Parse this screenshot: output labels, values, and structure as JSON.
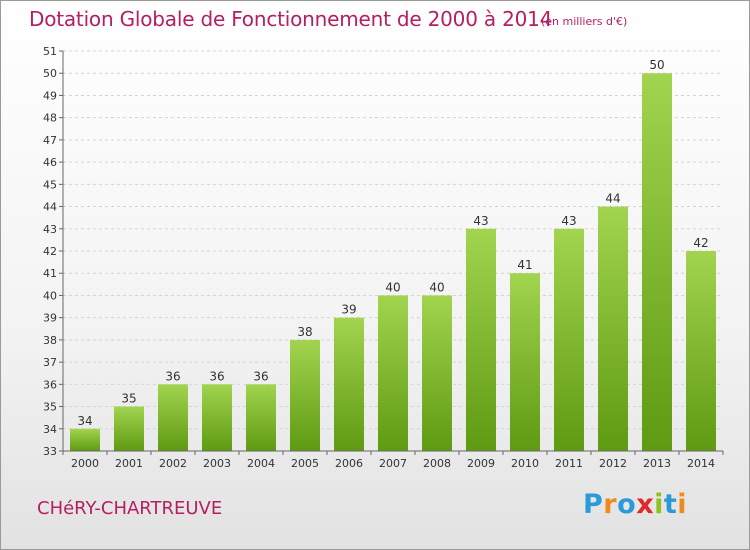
{
  "header": {
    "title": "Dotation Globale de Fonctionnement de 2000 à 2014",
    "unit": "(en milliers d'€)"
  },
  "footer": {
    "commune": "CHéRY-CHARTREUVE",
    "logo": [
      "P",
      "r",
      "o",
      "x",
      "i",
      "t",
      "i"
    ],
    "logo_colors": [
      "#2a9ad8",
      "#f08a1c",
      "#2a9ad8",
      "#e3262b",
      "#8fc11f",
      "#2a9ad8",
      "#f08a1c"
    ]
  },
  "chart_data": {
    "type": "bar",
    "title": "Dotation Globale de Fonctionnement de 2000 à 2014",
    "subtitle": "(en milliers d'€)",
    "categories": [
      "2000",
      "2001",
      "2002",
      "2003",
      "2004",
      "2005",
      "2006",
      "2007",
      "2008",
      "2009",
      "2010",
      "2011",
      "2012",
      "2013",
      "2014"
    ],
    "values": [
      34,
      35,
      36,
      36,
      36,
      38,
      39,
      40,
      40,
      43,
      41,
      43,
      44,
      50,
      42
    ],
    "labels": [
      "34",
      "35",
      "36",
      "36",
      "36",
      "38",
      "39",
      "40",
      "40",
      "43",
      "41",
      "43",
      "44",
      "50",
      "42"
    ],
    "yticks": [
      "33",
      "34",
      "35",
      "36",
      "37",
      "38",
      "39",
      "40",
      "41",
      "42",
      "43",
      "44",
      "45",
      "46",
      "47",
      "48",
      "49",
      "50",
      "51"
    ],
    "ylim": [
      33,
      51
    ],
    "grid": true,
    "bar_color_top": "#a2d44f",
    "bar_color_bottom": "#5e9a12"
  }
}
